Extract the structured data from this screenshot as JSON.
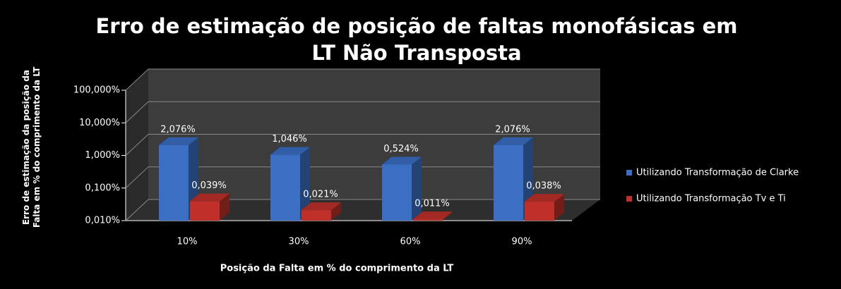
{
  "chart_data": {
    "type": "bar3d",
    "title": "Erro de estimação de posição de faltas monofásicas em LT Não Transposta",
    "x_label": "Posição da Falta em % do comprimento da LT",
    "y_label": "Erro de estimação da posição da Falta em % do comprimento da LT",
    "categories": [
      "10%",
      "30%",
      "60%",
      "90%"
    ],
    "series": [
      {
        "name": "Utilizando Transformação de Clarke",
        "color": "#3a6fc4",
        "values": [
          2.076,
          1.046,
          0.524,
          2.076
        ],
        "value_labels": [
          "2,076%",
          "1,046%",
          "0,524%",
          "2,076%"
        ]
      },
      {
        "name": "Utilizando Transformação Tv e Ti",
        "color": "#c0302a",
        "values": [
          0.039,
          0.021,
          0.011,
          0.038
        ],
        "value_labels": [
          "0,039%",
          "0,021%",
          "0,011%",
          "0,038%"
        ]
      }
    ],
    "yscale": "log",
    "ylim": [
      0.01,
      100
    ],
    "yticks": [
      {
        "value": 0.01,
        "label": "0,010%"
      },
      {
        "value": 0.1,
        "label": "0,100%"
      },
      {
        "value": 1,
        "label": "1,000%"
      },
      {
        "value": 10,
        "label": "10,000%"
      },
      {
        "value": 100,
        "label": "100,000%"
      }
    ],
    "grid": true,
    "legend": "right"
  }
}
